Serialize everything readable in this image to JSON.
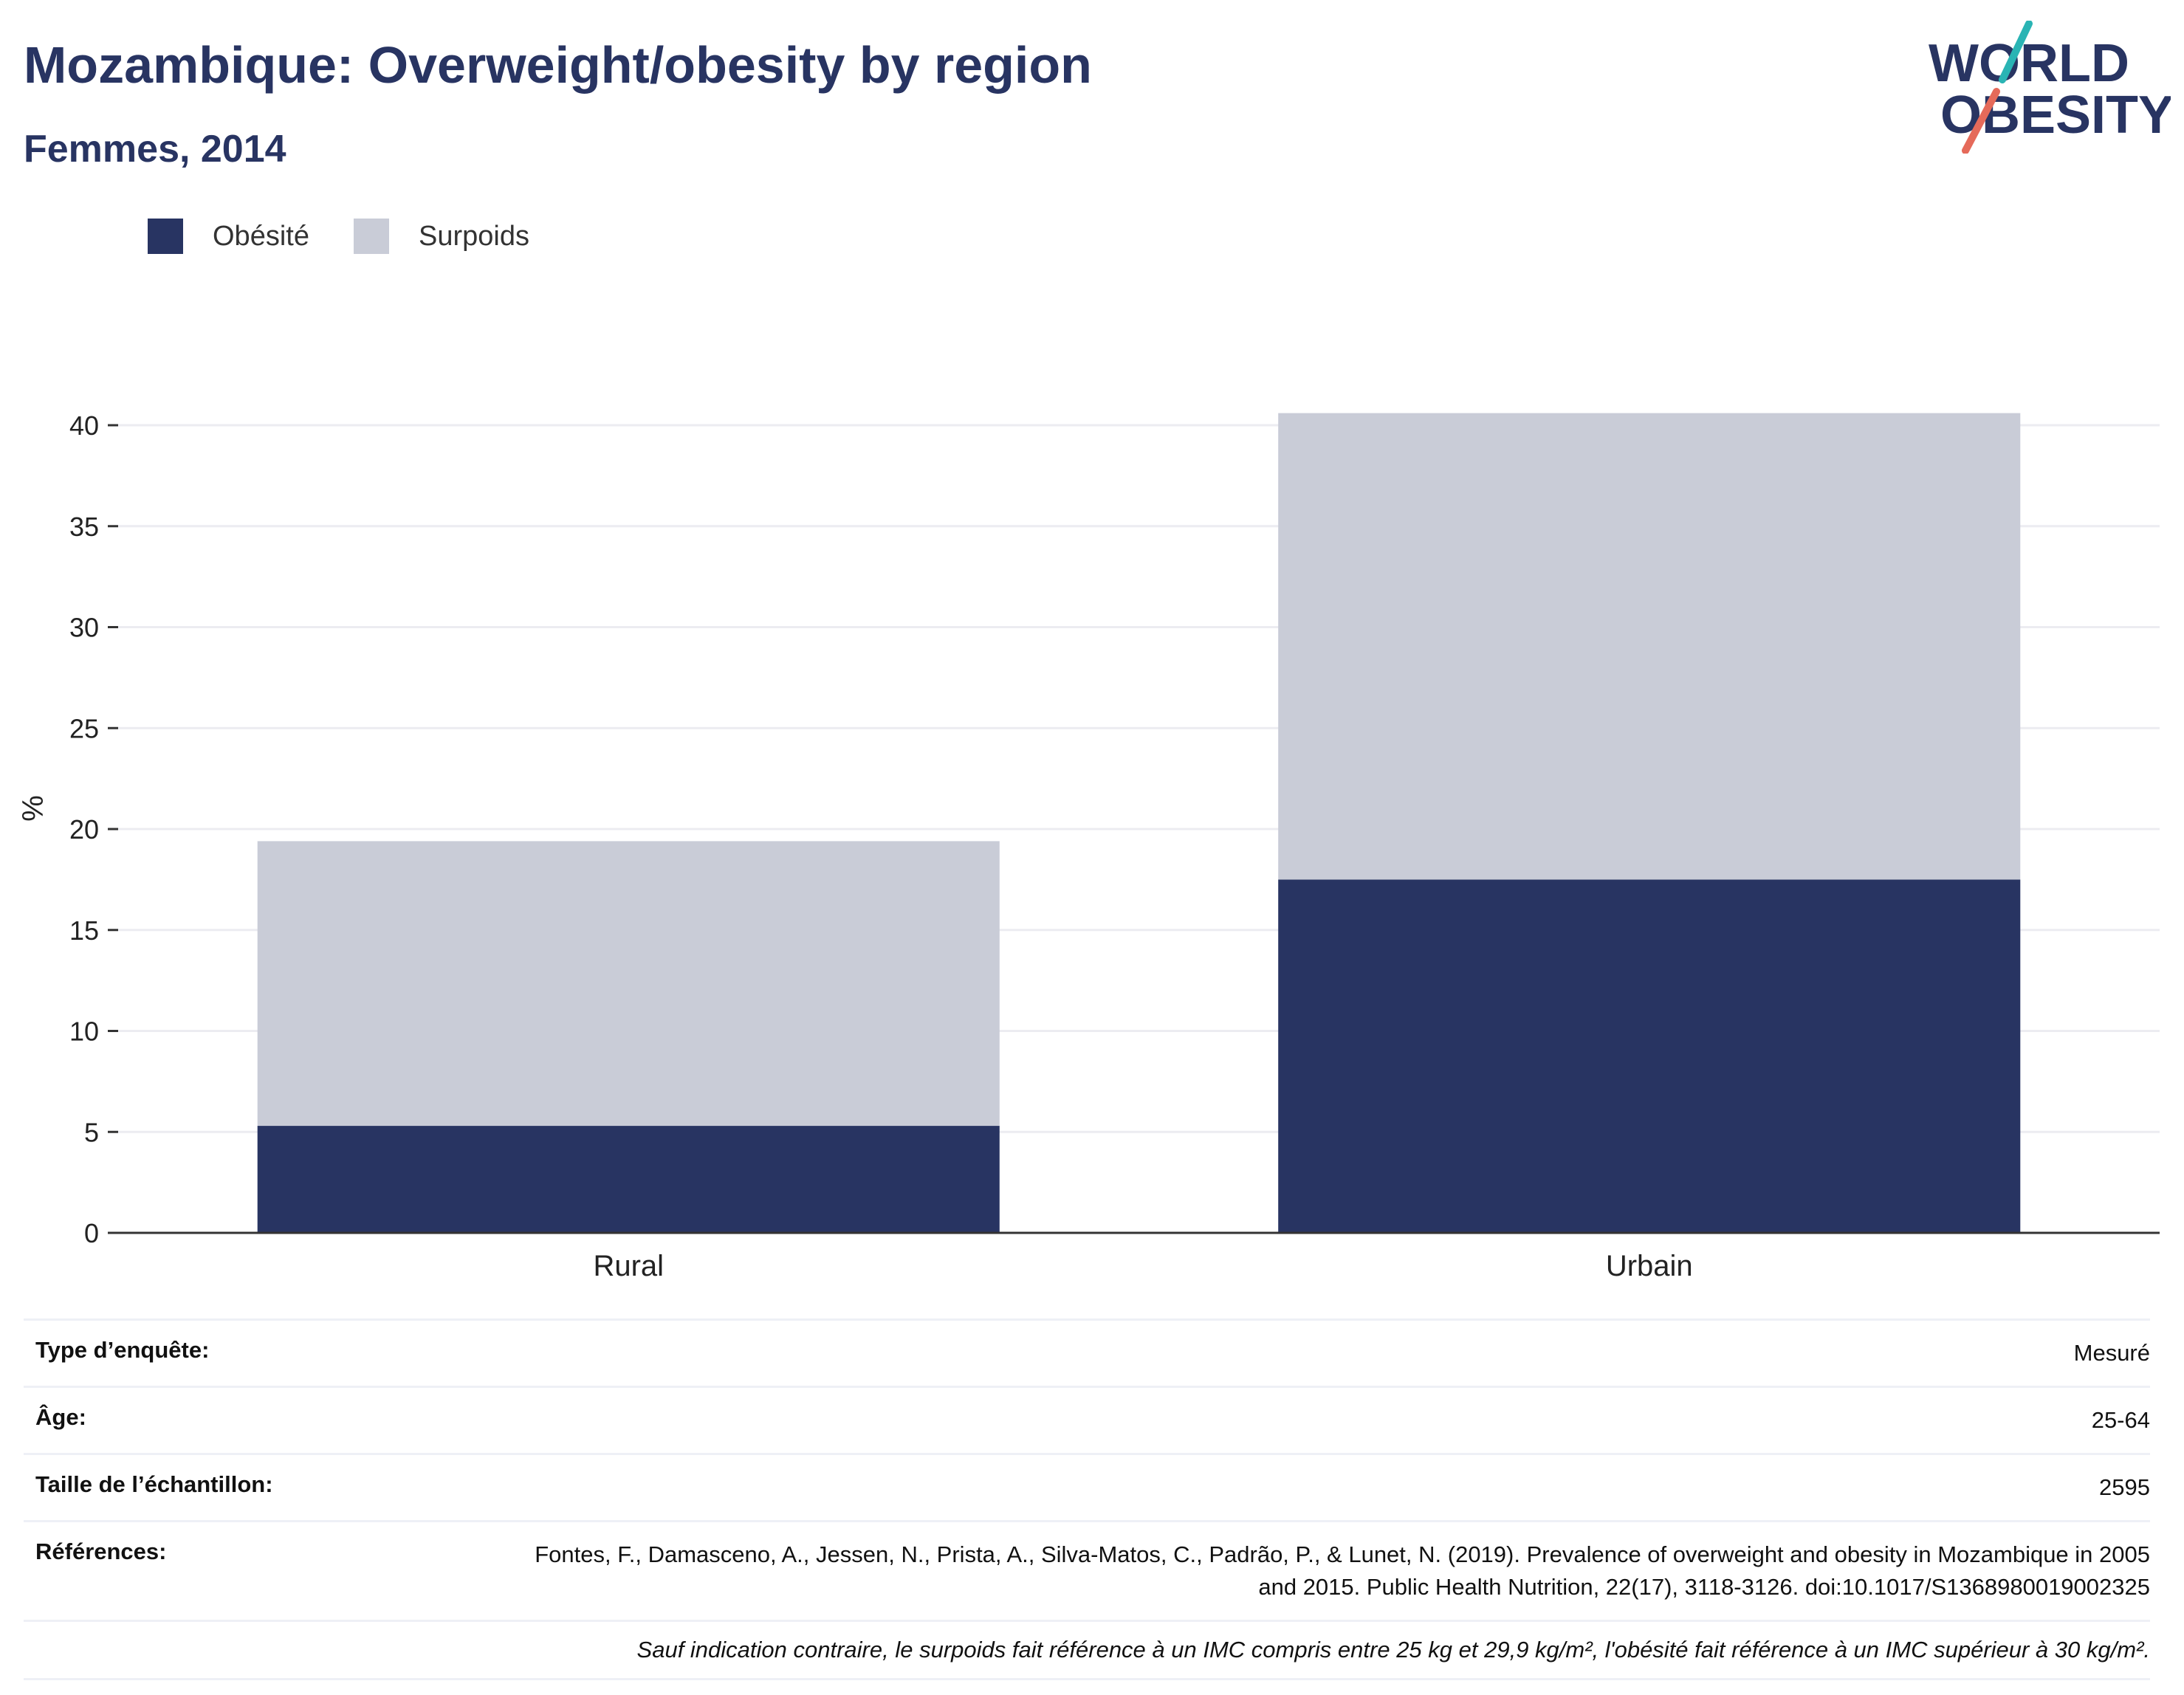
{
  "title": "Mozambique: Overweight/obesity by region",
  "subtitle": "Femmes, 2014",
  "logo": {
    "line1": "WORLD",
    "line2": "OBESITY",
    "color_text": "#283462",
    "color_slash_top": "#2ab4b4",
    "color_slash_bottom": "#e56a5a"
  },
  "legend": [
    {
      "label": "Obésité",
      "color": "#283462"
    },
    {
      "label": "Surpoids",
      "color": "#c9ccd7"
    }
  ],
  "chart_data": {
    "type": "bar",
    "stacked": true,
    "categories": [
      "Rural",
      "Urbain"
    ],
    "series": [
      {
        "name": "Obésité",
        "values": [
          5.3,
          17.5
        ],
        "color": "#283462"
      },
      {
        "name": "Surpoids",
        "values": [
          14.1,
          23.1
        ],
        "color": "#c9ccd7"
      }
    ],
    "ylabel": "%",
    "xlabel": "",
    "ylim": [
      0,
      40
    ],
    "yticks": [
      0,
      5,
      10,
      15,
      20,
      25,
      30,
      35,
      40
    ],
    "grid": true,
    "legend_position": "top-left"
  },
  "meta": [
    {
      "label": "Type d’enquête:",
      "value": "Mesuré"
    },
    {
      "label": "Âge:",
      "value": "25-64"
    },
    {
      "label": "Taille de l’échantillon:",
      "value": "2595"
    },
    {
      "label": "Références:",
      "value": "Fontes, F., Damasceno, A., Jessen, N., Prista, A., Silva-Matos, C., Padrão, P., & Lunet, N. (2019). Prevalence of overweight and obesity in Mozambique in 2005 and 2015. Public Health Nutrition, 22(17), 3118-3126. doi:10.1017/S1368980019002325"
    }
  ],
  "note": "Sauf indication contraire, le surpoids fait référence à un IMC compris entre 25 kg et 29,9 kg/m², l'obésité fait référence à un IMC supérieur à 30 kg/m²."
}
